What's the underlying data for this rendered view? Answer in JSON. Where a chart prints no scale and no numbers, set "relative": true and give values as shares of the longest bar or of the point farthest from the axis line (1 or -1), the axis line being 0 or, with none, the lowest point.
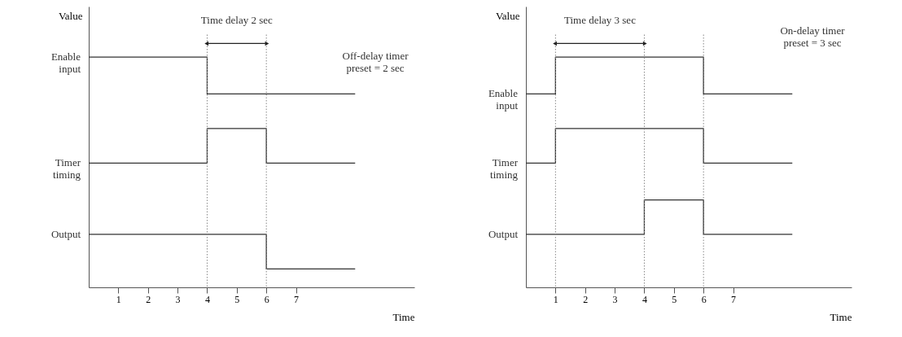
{
  "chart_data": [
    {
      "type": "step",
      "xlabel": "Time",
      "ylabel": "Value",
      "relative": true,
      "xlim": [
        0,
        11
      ],
      "xticks": [
        1,
        2,
        3,
        4,
        5,
        6,
        7
      ],
      "grid": false,
      "legend": false,
      "line_style": "solid",
      "series": [
        {
          "name": "Enable input",
          "color": "#333333",
          "x": [
            0,
            4,
            9
          ],
          "values": [
            1,
            0.84,
            0.84
          ]
        },
        {
          "name": "Timer timing",
          "color": "#333333",
          "x": [
            0,
            4,
            6,
            9
          ],
          "values": [
            0.54,
            0.69,
            0.54,
            0.54
          ]
        },
        {
          "name": "Output",
          "color": "#333333",
          "x": [
            0,
            6,
            9
          ],
          "values": [
            0.23,
            0.08,
            0.08
          ]
        }
      ],
      "ref_lines": [
        {
          "axis": "x",
          "value": 4,
          "line_style": "dotted",
          "color": "#888888"
        },
        {
          "axis": "x",
          "value": 6,
          "line_style": "dotted",
          "color": "#888888"
        }
      ],
      "annotations": [
        "Time delay 2 sec",
        "Off-delay timer\npreset = 2 sec"
      ]
    },
    {
      "type": "step",
      "xlabel": "Time",
      "ylabel": "Value",
      "relative": true,
      "xlim": [
        0,
        11
      ],
      "xticks": [
        1,
        2,
        3,
        4,
        5,
        6,
        7
      ],
      "grid": false,
      "legend": false,
      "line_style": "solid",
      "series": [
        {
          "name": "Enable input",
          "color": "#333333",
          "x": [
            0,
            1,
            6,
            9
          ],
          "values": [
            0.84,
            1,
            0.84,
            0.84
          ]
        },
        {
          "name": "Timer timing",
          "color": "#333333",
          "x": [
            0,
            1,
            6,
            9
          ],
          "values": [
            0.54,
            0.69,
            0.54,
            0.54
          ]
        },
        {
          "name": "Output",
          "color": "#333333",
          "x": [
            0,
            4,
            6,
            9
          ],
          "values": [
            0.23,
            0.38,
            0.23,
            0.23
          ]
        }
      ],
      "ref_lines": [
        {
          "axis": "x",
          "value": 1,
          "line_style": "dotted",
          "color": "#888888"
        },
        {
          "axis": "x",
          "value": 4,
          "line_style": "dotted",
          "color": "#888888"
        },
        {
          "axis": "x",
          "value": 6,
          "line_style": "dotted",
          "color": "#888888"
        }
      ],
      "annotations": [
        "Time delay 3 sec",
        "On-delay timer\npreset = 3 sec"
      ]
    }
  ]
}
